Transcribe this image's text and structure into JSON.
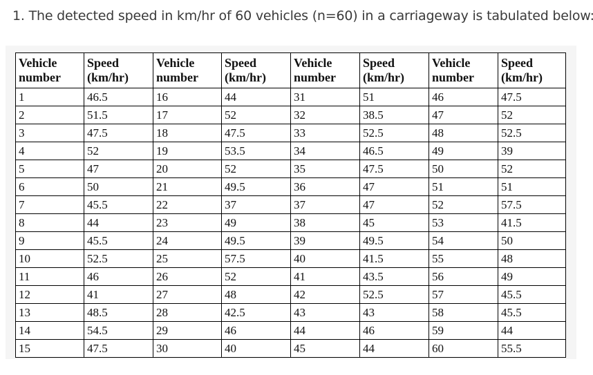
{
  "question": "1. The detected speed in km/hr of 60 vehicles (n=60) in a carriageway is tabulated below:",
  "table": {
    "headers": [
      {
        "line1": "Vehicle",
        "line2": "number"
      },
      {
        "line1": "Speed",
        "line2": "(km/hr)"
      },
      {
        "line1": "Vehicle",
        "line2": "number"
      },
      {
        "line1": "Speed",
        "line2": "(km/hr)"
      },
      {
        "line1": "Vehicle",
        "line2": "number"
      },
      {
        "line1": "Speed",
        "line2": "(km/hr)"
      },
      {
        "line1": "Vehicle",
        "line2": "number"
      },
      {
        "line1": "Speed",
        "line2": "(km/hr)"
      }
    ],
    "rows": [
      [
        "1",
        "46.5",
        "16",
        "44",
        "31",
        "51",
        "46",
        "47.5"
      ],
      [
        "2",
        "51.5",
        "17",
        "52",
        "32",
        "38.5",
        "47",
        "52"
      ],
      [
        "3",
        "47.5",
        "18",
        "47.5",
        "33",
        "52.5",
        "48",
        "52.5"
      ],
      [
        "4",
        "52",
        "19",
        "53.5",
        "34",
        "46.5",
        "49",
        "39"
      ],
      [
        "5",
        "47",
        "20",
        "52",
        "35",
        "47.5",
        "50",
        "52"
      ],
      [
        "6",
        "50",
        "21",
        "49.5",
        "36",
        "47",
        "51",
        "51"
      ],
      [
        "7",
        "45.5",
        "22",
        "37",
        "37",
        "47",
        "52",
        "57.5"
      ],
      [
        "8",
        "44",
        "23",
        "49",
        "38",
        "45",
        "53",
        "41.5"
      ],
      [
        "9",
        "45.5",
        "24",
        "49.5",
        "39",
        "49.5",
        "54",
        "50"
      ],
      [
        "10",
        "52.5",
        "25",
        "57.5",
        "40",
        "41.5",
        "55",
        "48"
      ],
      [
        "11",
        "46",
        "26",
        "52",
        "41",
        "43.5",
        "56",
        "49"
      ],
      [
        "12",
        "41",
        "27",
        "48",
        "42",
        "52.5",
        "57",
        "45.5"
      ],
      [
        "13",
        "48.5",
        "28",
        "42.5",
        "43",
        "43",
        "58",
        "45.5"
      ],
      [
        "14",
        "54.5",
        "29",
        "46",
        "44",
        "46",
        "59",
        "44"
      ],
      [
        "15",
        "47.5",
        "30",
        "40",
        "45",
        "44",
        "60",
        "55.5"
      ]
    ]
  }
}
